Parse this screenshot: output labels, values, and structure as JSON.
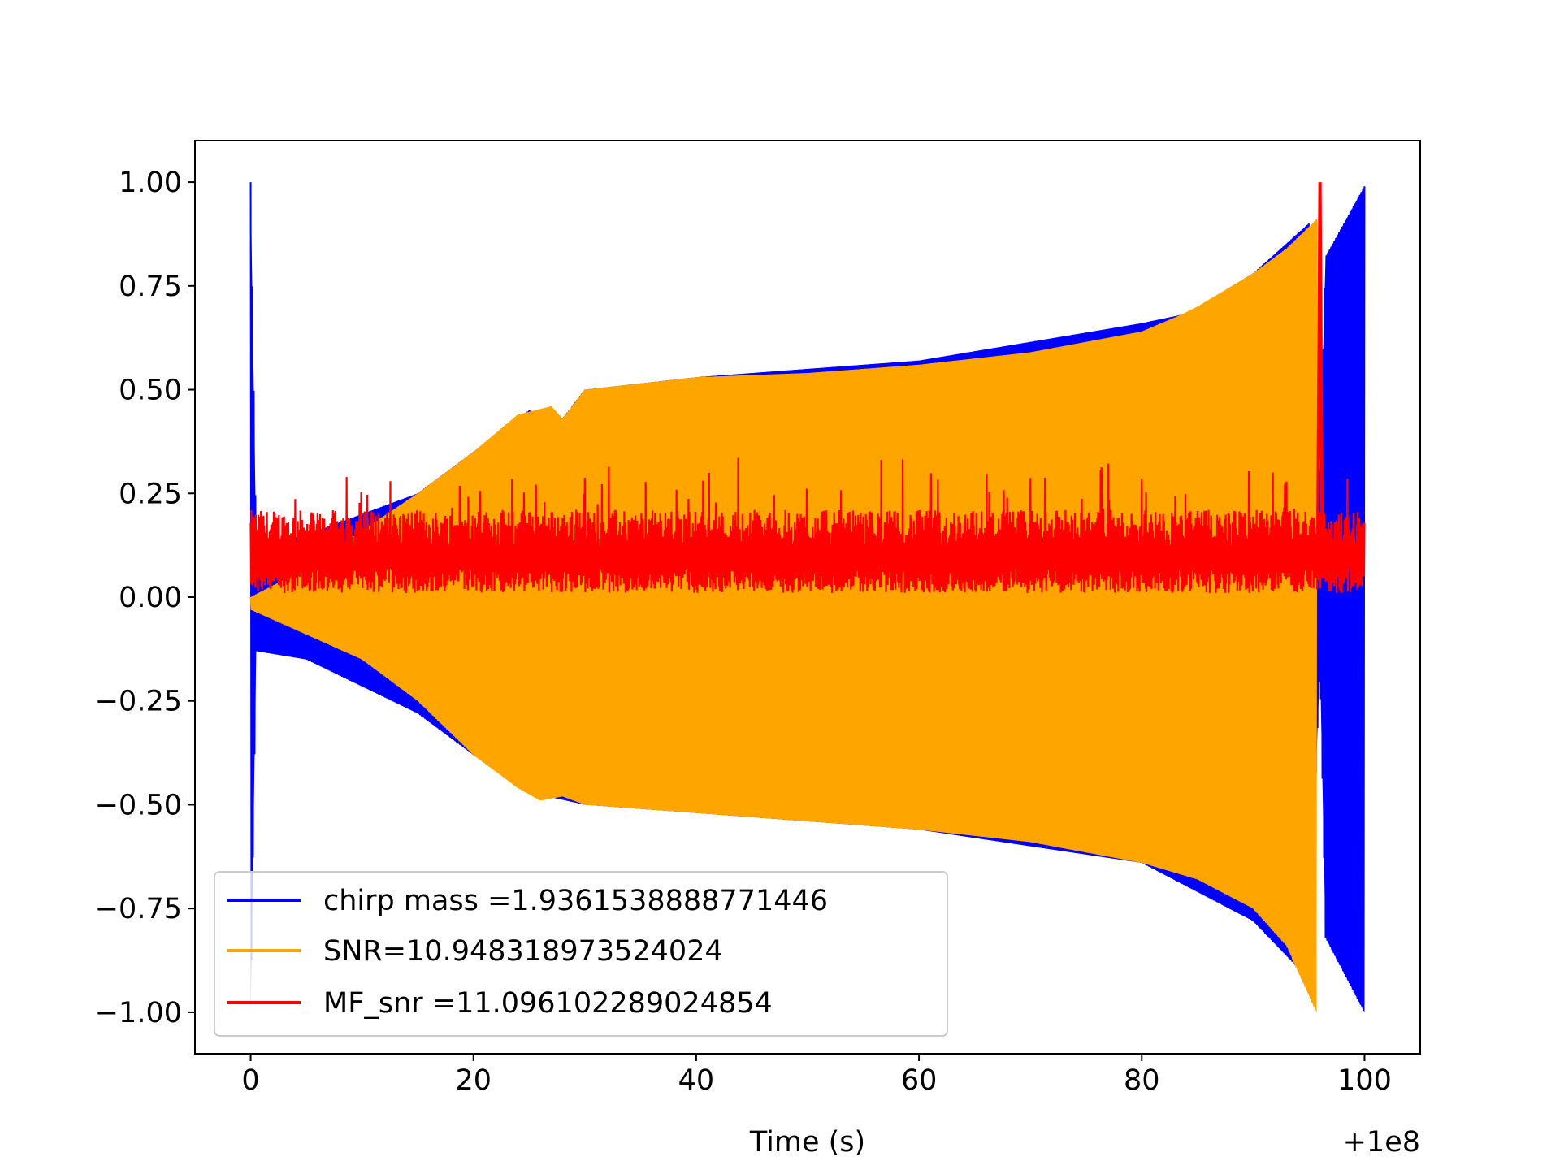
{
  "chart_data": {
    "type": "line",
    "title": "",
    "xlabel": "Time (s)",
    "ylabel": "",
    "x_offset_label": "+1e8",
    "xlim": [
      -5,
      105
    ],
    "ylim": [
      -1.1,
      1.1
    ],
    "xticks": [
      0,
      20,
      40,
      60,
      80,
      100
    ],
    "xtick_labels": [
      "0",
      "20",
      "40",
      "60",
      "80",
      "100"
    ],
    "yticks": [
      1.0,
      0.75,
      0.5,
      0.25,
      0.0,
      -0.25,
      -0.5,
      -0.75,
      -1.0
    ],
    "ytick_labels": [
      "1.00",
      "0.75",
      "0.50",
      "0.25",
      "0.00",
      "−0.25",
      "−0.50",
      "−0.75",
      "−1.00"
    ],
    "grid": false,
    "legend_position": "lower-left",
    "series": [
      {
        "name": "chirp mass =1.9361538888771446",
        "color": "#0000ff",
        "envelope_upper": [
          [
            0,
            1.0
          ],
          [
            0.5,
            0.12
          ],
          [
            5,
            0.15
          ],
          [
            15,
            0.25
          ],
          [
            20,
            0.35
          ],
          [
            25,
            0.45
          ],
          [
            28,
            0.43
          ],
          [
            30,
            0.5
          ],
          [
            40,
            0.53
          ],
          [
            60,
            0.57
          ],
          [
            80,
            0.66
          ],
          [
            83.5,
            0.68
          ],
          [
            83.7,
            0.4
          ],
          [
            83.9,
            0.68
          ],
          [
            90,
            0.78
          ],
          [
            95,
            0.9
          ],
          [
            96,
            0.3
          ],
          [
            96.5,
            0.82
          ],
          [
            100,
            0.99
          ]
        ],
        "envelope_lower": [
          [
            0,
            -1.0
          ],
          [
            0.5,
            -0.13
          ],
          [
            5,
            -0.15
          ],
          [
            15,
            -0.28
          ],
          [
            20,
            -0.38
          ],
          [
            25,
            -0.47
          ],
          [
            30,
            -0.5
          ],
          [
            40,
            -0.52
          ],
          [
            60,
            -0.56
          ],
          [
            80,
            -0.64
          ],
          [
            90,
            -0.78
          ],
          [
            95,
            -0.92
          ],
          [
            96,
            -0.15
          ],
          [
            96.5,
            -0.82
          ],
          [
            100,
            -1.0
          ]
        ]
      },
      {
        "name": "SNR=10.948318973524024",
        "color": "#ffa500",
        "envelope_upper": [
          [
            0,
            0.0
          ],
          [
            5,
            0.07
          ],
          [
            10,
            0.16
          ],
          [
            15,
            0.25
          ],
          [
            20,
            0.35
          ],
          [
            24,
            0.44
          ],
          [
            27,
            0.46
          ],
          [
            28,
            0.43
          ],
          [
            30,
            0.5
          ],
          [
            40,
            0.53
          ],
          [
            50,
            0.54
          ],
          [
            60,
            0.56
          ],
          [
            70,
            0.59
          ],
          [
            80,
            0.64
          ],
          [
            83.5,
            0.68
          ],
          [
            85,
            0.7
          ],
          [
            90,
            0.78
          ],
          [
            93,
            0.84
          ],
          [
            95.7,
            0.91
          ]
        ],
        "envelope_lower": [
          [
            0,
            -0.03
          ],
          [
            5,
            -0.09
          ],
          [
            10,
            -0.15
          ],
          [
            15,
            -0.25
          ],
          [
            20,
            -0.38
          ],
          [
            24,
            -0.46
          ],
          [
            26,
            -0.49
          ],
          [
            28,
            -0.48
          ],
          [
            30,
            -0.5
          ],
          [
            40,
            -0.52
          ],
          [
            50,
            -0.54
          ],
          [
            60,
            -0.56
          ],
          [
            70,
            -0.59
          ],
          [
            80,
            -0.64
          ],
          [
            85,
            -0.68
          ],
          [
            90,
            -0.75
          ],
          [
            93,
            -0.84
          ],
          [
            95.7,
            -1.0
          ]
        ]
      },
      {
        "name": "MF_snr =11.096102289024854",
        "color": "#ff0000",
        "mean": 0.1,
        "range": [
          0.0,
          0.34
        ],
        "peak": [
          96.0,
          1.0
        ]
      }
    ]
  }
}
